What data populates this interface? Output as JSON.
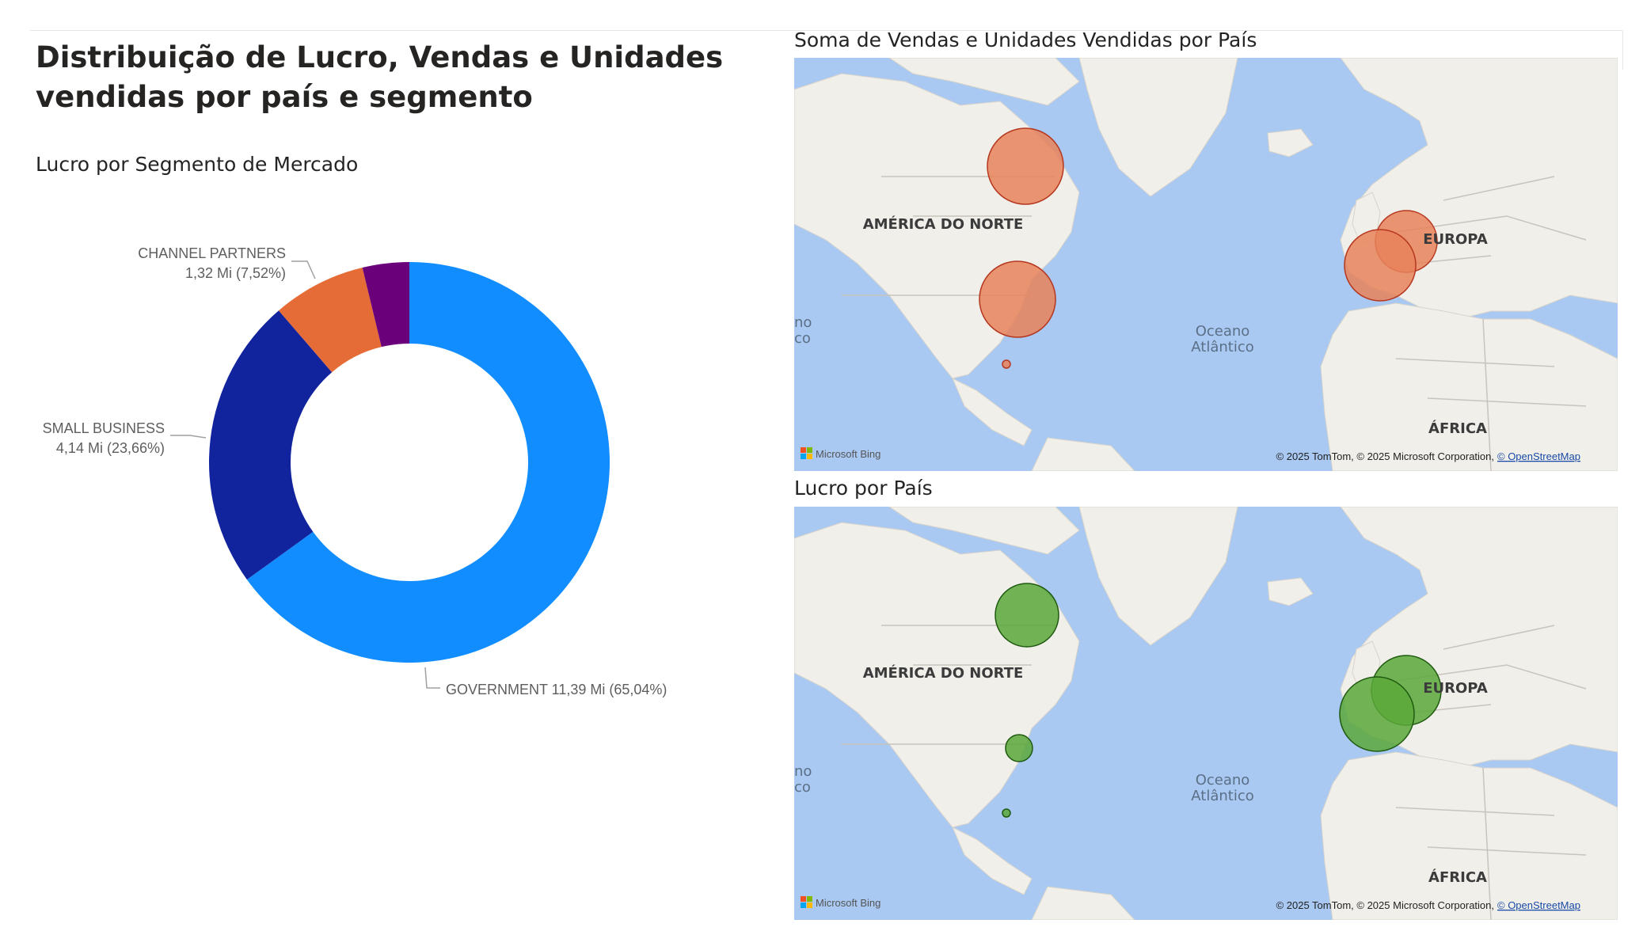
{
  "header": {
    "title": "Distribuição de Lucro, Vendas e Unidades vendidas por país e segmento"
  },
  "donut": {
    "title": "Lucro por Segmento de Mercado",
    "labels": {
      "channel_partners_name": "CHANNEL PARTNERS",
      "channel_partners_value": "1,32 Mi (7,52%)",
      "small_business_name": "SMALL BUSINESS",
      "small_business_value": "4,14 Mi (23,66%)",
      "government": "GOVERNMENT 11,39 Mi (65,04%)"
    }
  },
  "chart_data": {
    "type": "pie",
    "title": "Lucro por Segmento de Mercado",
    "style": "donut",
    "start": "top, clockwise",
    "categories": [
      "GOVERNMENT",
      "SMALL BUSINESS",
      "CHANNEL PARTNERS",
      "(unlabeled segment)"
    ],
    "values": [
      11.39,
      4.14,
      1.32,
      0.66
    ],
    "percent": [
      65.04,
      23.66,
      7.52,
      3.78
    ],
    "unit": "Mi",
    "colors": [
      "#118dff",
      "#12239e",
      "#e66c37",
      "#6b007b"
    ]
  },
  "map_sales": {
    "title": "Soma de Vendas e Unidades Vendidas por País",
    "bubble_color": "#e8825a",
    "bubble_stroke": "#b5371f",
    "region_labels": [
      "AMÉRICA DO NORTE",
      "EUROPA",
      "ÁFRICA"
    ],
    "ocean_label_1": "Oceano",
    "ocean_label_2": "Atlântico",
    "pacific_fragment_1": "no",
    "pacific_fragment_2": "co",
    "bing": "Microsoft Bing",
    "copyright": "© 2025 TomTom, © 2025 Microsoft Corporation,",
    "osm_link": "© OpenStreetMap"
  },
  "map_profit": {
    "title": "Lucro por País",
    "bubble_color": "#5aa83a",
    "bubble_stroke": "#1f5a10",
    "region_labels": [
      "AMÉRICA DO NORTE",
      "EUROPA",
      "ÁFRICA"
    ],
    "ocean_label_1": "Oceano",
    "ocean_label_2": "Atlântico",
    "pacific_fragment_1": "no",
    "pacific_fragment_2": "co",
    "bing": "Microsoft Bing",
    "copyright": "© 2025 TomTom, © 2025 Microsoft Corporation,",
    "osm_link": "© OpenStreetMap"
  }
}
